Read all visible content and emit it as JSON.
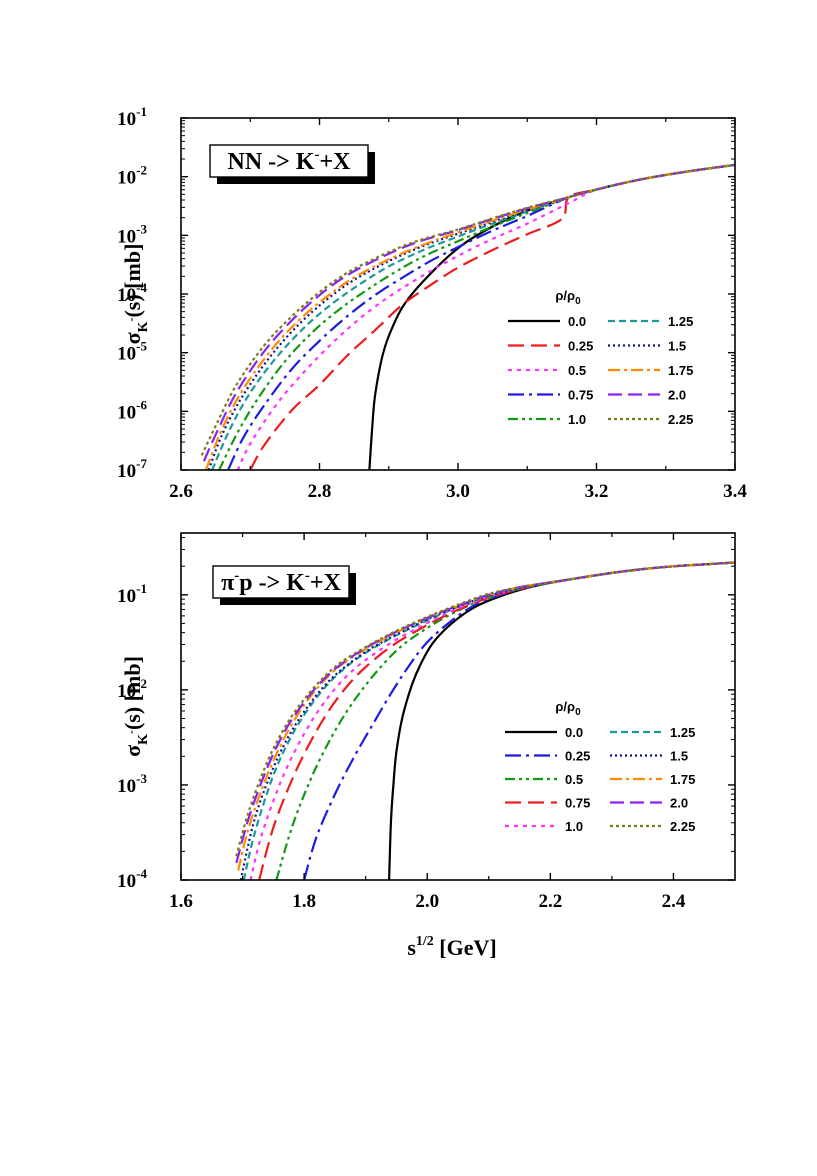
{
  "chart_data": [
    {
      "type": "line",
      "title": "NN -> K⁻+X",
      "title_parts": {
        "base": "NN -> K",
        "sup": "-",
        "rest": "+X"
      },
      "xlabel": "",
      "ylabel_parts": {
        "sigma": "σ",
        "sub": "K",
        "subsup": "-",
        "rest": "(s)   [mb]"
      },
      "xlim": [
        2.6,
        3.4
      ],
      "ylim_log10": [
        -7,
        -1
      ],
      "x_ticks": [
        "2.6",
        "2.8",
        "3.0",
        "3.2",
        "3.4"
      ],
      "x_tick_values": [
        2.6,
        2.8,
        3.0,
        3.2,
        3.4
      ],
      "y_ticks": [
        {
          "base": "10",
          "exp": "-1"
        },
        {
          "base": "10",
          "exp": "-2"
        },
        {
          "base": "10",
          "exp": "-3"
        },
        {
          "base": "10",
          "exp": "-4"
        },
        {
          "base": "10",
          "exp": "-5"
        },
        {
          "base": "10",
          "exp": "-6"
        },
        {
          "base": "10",
          "exp": "-7"
        }
      ],
      "y_tick_values": [
        -1,
        -2,
        -3,
        -4,
        -5,
        -6,
        -7
      ],
      "legend_title": {
        "base": "ρ/ρ",
        "sub": "0"
      },
      "legend_position": "lower-right",
      "common_tail": {
        "x": [
          3.16,
          3.2,
          3.25,
          3.3,
          3.35,
          3.4
        ],
        "log10_y": [
          -2.35,
          -2.22,
          -2.08,
          -1.97,
          -1.88,
          -1.8
        ]
      },
      "series": [
        {
          "name": "0.0",
          "color": "#000000",
          "dash": "",
          "x": [
            2.872,
            2.876,
            2.88,
            2.89,
            2.9,
            2.92,
            2.95,
            3.0,
            3.05,
            3.1,
            3.16
          ],
          "log10_y": [
            -7.0,
            -6.3,
            -5.75,
            -5.1,
            -4.72,
            -4.22,
            -3.78,
            -3.22,
            -2.85,
            -2.58,
            -2.35
          ]
        },
        {
          "name": "0.25",
          "color": "#ee1c1c",
          "dash": "16,7",
          "x": [
            2.7,
            2.72,
            2.76,
            2.8,
            2.84,
            2.88,
            2.92,
            2.96,
            3.0,
            3.05,
            3.1,
            3.15,
            3.16
          ],
          "log10_y": [
            -7.0,
            -6.58,
            -5.98,
            -5.55,
            -5.05,
            -4.62,
            -4.18,
            -3.85,
            -3.55,
            -3.25,
            -2.98,
            -2.72,
            -2.35
          ]
        },
        {
          "name": "0.5",
          "color": "#ff33ff",
          "dash": "4,5",
          "x": [
            2.682,
            2.7,
            2.74,
            2.78,
            2.82,
            2.86,
            2.9,
            2.95,
            3.0,
            3.05,
            3.1,
            3.16
          ],
          "log10_y": [
            -7.0,
            -6.55,
            -5.85,
            -5.3,
            -4.82,
            -4.4,
            -4.05,
            -3.68,
            -3.35,
            -3.06,
            -2.8,
            -2.45
          ]
        },
        {
          "name": "0.75",
          "color": "#1c1cdd",
          "dash": "16,5,3,5",
          "x": [
            2.668,
            2.69,
            2.72,
            2.76,
            2.8,
            2.84,
            2.88,
            2.92,
            2.96,
            3.0,
            3.05,
            3.1,
            3.16
          ],
          "log10_y": [
            -7.0,
            -6.45,
            -5.9,
            -5.28,
            -4.8,
            -4.38,
            -4.02,
            -3.72,
            -3.44,
            -3.2,
            -2.92,
            -2.67,
            -2.35
          ]
        },
        {
          "name": "1.0",
          "color": "#119911",
          "dash": "10,4,3,4,3,4",
          "x": [
            2.655,
            2.68,
            2.71,
            2.75,
            2.79,
            2.83,
            2.87,
            2.91,
            2.95,
            3.0,
            3.05,
            3.1,
            3.16
          ],
          "log10_y": [
            -7.0,
            -6.4,
            -5.8,
            -5.15,
            -4.65,
            -4.25,
            -3.92,
            -3.62,
            -3.36,
            -3.1,
            -2.85,
            -2.62,
            -2.35
          ]
        },
        {
          "name": "1.25",
          "color": "#1a9a9a",
          "dash": "7,4",
          "x": [
            2.645,
            2.67,
            2.7,
            2.74,
            2.78,
            2.82,
            2.86,
            2.9,
            2.95,
            3.0,
            3.05,
            3.1,
            3.16
          ],
          "log10_y": [
            -7.0,
            -6.32,
            -5.68,
            -5.05,
            -4.55,
            -4.15,
            -3.82,
            -3.53,
            -3.25,
            -3.02,
            -2.8,
            -2.59,
            -2.35
          ]
        },
        {
          "name": "1.5",
          "color": "#111188",
          "dash": "2,3",
          "x": [
            2.64,
            2.66,
            2.69,
            2.73,
            2.77,
            2.81,
            2.85,
            2.9,
            2.95,
            3.0,
            3.05,
            3.1,
            3.16
          ],
          "log10_y": [
            -7.0,
            -6.38,
            -5.72,
            -5.05,
            -4.52,
            -4.1,
            -3.76,
            -3.44,
            -3.18,
            -2.97,
            -2.77,
            -2.57,
            -2.35
          ]
        },
        {
          "name": "1.75",
          "color": "#ff8c00",
          "dash": "12,4,3,4",
          "x": [
            2.636,
            2.66,
            2.69,
            2.73,
            2.77,
            2.81,
            2.85,
            2.9,
            2.95,
            3.0,
            3.05,
            3.1,
            3.16
          ],
          "log10_y": [
            -7.0,
            -6.28,
            -5.62,
            -4.96,
            -4.45,
            -4.05,
            -3.72,
            -3.41,
            -3.16,
            -2.95,
            -2.75,
            -2.56,
            -2.35
          ]
        },
        {
          "name": "2.0",
          "color": "#8822ee",
          "dash": "14,6",
          "x": [
            2.633,
            2.65,
            2.68,
            2.72,
            2.76,
            2.8,
            2.84,
            2.89,
            2.94,
            3.0,
            3.05,
            3.1,
            3.16
          ],
          "log10_y": [
            -6.85,
            -6.4,
            -5.68,
            -4.98,
            -4.45,
            -4.02,
            -3.68,
            -3.37,
            -3.12,
            -2.91,
            -2.72,
            -2.54,
            -2.35
          ]
        },
        {
          "name": "2.25",
          "color": "#7b7b1a",
          "dash": "3,3",
          "x": [
            2.63,
            2.65,
            2.68,
            2.72,
            2.76,
            2.8,
            2.84,
            2.89,
            2.94,
            3.0,
            3.05,
            3.1,
            3.16
          ],
          "log10_y": [
            -6.75,
            -6.25,
            -5.55,
            -4.88,
            -4.38,
            -3.97,
            -3.64,
            -3.34,
            -3.1,
            -2.9,
            -2.71,
            -2.53,
            -2.35
          ]
        }
      ]
    },
    {
      "type": "line",
      "title": "π⁻p -> K⁻+X",
      "title_parts": {
        "base": "π",
        "sup": "-",
        "mid": "p -> K",
        "sup2": "-",
        "rest": "+X"
      },
      "xlabel_parts": {
        "base": "s",
        "sup": "1/2",
        "rest": " [GeV]"
      },
      "ylabel_parts": {
        "sigma": "σ",
        "sub": "K",
        "subsup": "-",
        "rest": "(s)   [mb]"
      },
      "xlim": [
        1.6,
        2.5
      ],
      "ylim_log10": [
        -4,
        -0.35
      ],
      "x_ticks": [
        "1.6",
        "1.8",
        "2.0",
        "2.2",
        "2.4"
      ],
      "x_tick_values": [
        1.6,
        1.8,
        2.0,
        2.2,
        2.4
      ],
      "y_ticks": [
        {
          "base": "10",
          "exp": "-1"
        },
        {
          "base": "10",
          "exp": "-2"
        },
        {
          "base": "10",
          "exp": "-3"
        },
        {
          "base": "10",
          "exp": "-4"
        }
      ],
      "y_tick_values": [
        -1,
        -2,
        -3,
        -4
      ],
      "legend_title": {
        "base": "ρ/ρ",
        "sub": "0"
      },
      "legend_position": "lower-right",
      "common_tail": {
        "x": [
          2.23,
          2.3,
          2.35,
          2.4,
          2.45,
          2.5
        ],
        "log10_y": [
          -0.84,
          -0.77,
          -0.73,
          -0.7,
          -0.68,
          -0.66
        ]
      },
      "series": [
        {
          "name": "0.0",
          "color": "#000000",
          "dash": "",
          "x": [
            1.938,
            1.941,
            1.945,
            1.95,
            1.96,
            1.975,
            1.99,
            2.01,
            2.04,
            2.08,
            2.13,
            2.18,
            2.23
          ],
          "log10_y": [
            -4.0,
            -3.4,
            -3.0,
            -2.65,
            -2.28,
            -1.95,
            -1.72,
            -1.5,
            -1.3,
            -1.12,
            -0.99,
            -0.9,
            -0.84
          ]
        },
        {
          "name": "0.25",
          "color": "#1c1cdd",
          "dash": "16,5,3,5",
          "x": [
            1.8,
            1.82,
            1.85,
            1.88,
            1.91,
            1.94,
            1.97,
            2.0,
            2.04,
            2.08,
            2.13,
            2.18,
            2.23
          ],
          "log10_y": [
            -4.0,
            -3.55,
            -3.1,
            -2.72,
            -2.38,
            -2.05,
            -1.75,
            -1.5,
            -1.27,
            -1.1,
            -0.98,
            -0.9,
            -0.84
          ]
        },
        {
          "name": "0.5",
          "color": "#119911",
          "dash": "10,4,3,4,3,4",
          "x": [
            1.755,
            1.78,
            1.81,
            1.84,
            1.87,
            1.9,
            1.93,
            1.96,
            2.0,
            2.04,
            2.08,
            2.13,
            2.18,
            2.23
          ],
          "log10_y": [
            -4.0,
            -3.45,
            -2.95,
            -2.55,
            -2.22,
            -1.95,
            -1.72,
            -1.53,
            -1.35,
            -1.2,
            -1.08,
            -0.97,
            -0.9,
            -0.84
          ]
        },
        {
          "name": "0.75",
          "color": "#ee1c1c",
          "dash": "16,7",
          "x": [
            1.727,
            1.75,
            1.78,
            1.81,
            1.84,
            1.87,
            1.9,
            1.94,
            1.98,
            2.02,
            2.06,
            2.1,
            2.15,
            2.2,
            2.23
          ],
          "log10_y": [
            -4.0,
            -3.45,
            -2.95,
            -2.55,
            -2.22,
            -1.96,
            -1.76,
            -1.55,
            -1.39,
            -1.25,
            -1.13,
            -1.03,
            -0.94,
            -0.87,
            -0.84
          ]
        },
        {
          "name": "1.0",
          "color": "#ff33ff",
          "dash": "4,5",
          "x": [
            1.713,
            1.73,
            1.76,
            1.79,
            1.82,
            1.85,
            1.88,
            1.91,
            1.95,
            1.99,
            2.03,
            2.07,
            2.12,
            2.18,
            2.23
          ],
          "log10_y": [
            -4.0,
            -3.55,
            -3.0,
            -2.58,
            -2.25,
            -1.99,
            -1.79,
            -1.64,
            -1.47,
            -1.33,
            -1.2,
            -1.09,
            -0.98,
            -0.89,
            -0.84
          ]
        },
        {
          "name": "1.25",
          "color": "#1a9a9a",
          "dash": "7,4",
          "x": [
            1.702,
            1.72,
            1.75,
            1.78,
            1.81,
            1.84,
            1.87,
            1.9,
            1.94,
            1.98,
            2.02,
            2.06,
            2.1,
            2.15,
            2.2,
            2.23
          ],
          "log10_y": [
            -4.0,
            -3.5,
            -2.9,
            -2.48,
            -2.17,
            -1.93,
            -1.75,
            -1.61,
            -1.46,
            -1.33,
            -1.21,
            -1.1,
            -1.01,
            -0.93,
            -0.87,
            -0.84
          ]
        },
        {
          "name": "1.5",
          "color": "#111188",
          "dash": "2,3",
          "x": [
            1.697,
            1.72,
            1.75,
            1.78,
            1.81,
            1.84,
            1.87,
            1.9,
            1.94,
            1.98,
            2.02,
            2.06,
            2.1,
            2.15,
            2.2,
            2.23
          ],
          "log10_y": [
            -4.0,
            -3.35,
            -2.82,
            -2.43,
            -2.14,
            -1.91,
            -1.74,
            -1.6,
            -1.45,
            -1.32,
            -1.2,
            -1.1,
            -1.01,
            -0.93,
            -0.87,
            -0.84
          ]
        },
        {
          "name": "1.75",
          "color": "#ff8c00",
          "dash": "12,4,3,4",
          "x": [
            1.693,
            1.71,
            1.74,
            1.77,
            1.8,
            1.83,
            1.86,
            1.9,
            1.94,
            1.98,
            2.02,
            2.06,
            2.1,
            2.15,
            2.2,
            2.23
          ],
          "log10_y": [
            -3.9,
            -3.45,
            -2.9,
            -2.48,
            -2.16,
            -1.92,
            -1.74,
            -1.57,
            -1.43,
            -1.3,
            -1.19,
            -1.09,
            -1.0,
            -0.92,
            -0.87,
            -0.84
          ]
        },
        {
          "name": "2.0",
          "color": "#8822ee",
          "dash": "14,6",
          "x": [
            1.69,
            1.71,
            1.74,
            1.77,
            1.8,
            1.83,
            1.86,
            1.9,
            1.94,
            1.98,
            2.02,
            2.06,
            2.1,
            2.15,
            2.2,
            2.23
          ],
          "log10_y": [
            -3.82,
            -3.35,
            -2.82,
            -2.42,
            -2.13,
            -1.9,
            -1.73,
            -1.56,
            -1.42,
            -1.3,
            -1.19,
            -1.09,
            -1.0,
            -0.92,
            -0.87,
            -0.84
          ]
        },
        {
          "name": "2.25",
          "color": "#7b7b1a",
          "dash": "3,3",
          "x": [
            1.69,
            1.71,
            1.74,
            1.77,
            1.8,
            1.83,
            1.86,
            1.9,
            1.94,
            1.98,
            2.02,
            2.06,
            2.1,
            2.15,
            2.2,
            2.23
          ],
          "log10_y": [
            -3.75,
            -3.28,
            -2.76,
            -2.38,
            -2.1,
            -1.88,
            -1.71,
            -1.55,
            -1.41,
            -1.29,
            -1.18,
            -1.08,
            -0.99,
            -0.92,
            -0.87,
            -0.84
          ]
        }
      ]
    }
  ]
}
